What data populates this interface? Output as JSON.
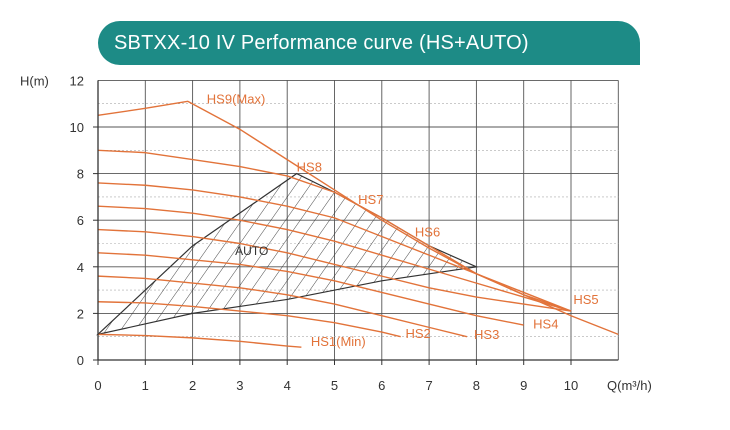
{
  "header": {
    "title": "SBTXX-10 IV Performance curve (HS+AUTO)"
  },
  "chart_data": {
    "type": "line",
    "title": "SBTXX-10 IV Performance curve (HS+AUTO)",
    "xlabel": "Q(m³/h)",
    "ylabel": "H(m)",
    "xlim": [
      0,
      11
    ],
    "ylim": [
      0,
      12
    ],
    "x_ticks": [
      "0",
      "1",
      "2",
      "3",
      "4",
      "5",
      "6",
      "7",
      "8",
      "9",
      "10"
    ],
    "y_ticks": [
      "0",
      "2",
      "4",
      "6",
      "8",
      "10",
      "12"
    ],
    "grid": true,
    "curve_color": "#e2733a",
    "hatch_color": "#333333",
    "series": [
      {
        "name": "HS9(Max)",
        "label": "HS9(Max)",
        "label_at": [
          2.3,
          11.0
        ],
        "points": [
          [
            0,
            10.5
          ],
          [
            1,
            10.8
          ],
          [
            1.9,
            11.1
          ],
          [
            3,
            9.9
          ],
          [
            4,
            8.6
          ],
          [
            5,
            7.3
          ],
          [
            6,
            6.0
          ],
          [
            7,
            4.8
          ],
          [
            8,
            3.7
          ],
          [
            9,
            2.8
          ],
          [
            10,
            1.9
          ],
          [
            11,
            1.1
          ]
        ]
      },
      {
        "name": "HS8",
        "label": "HS8",
        "label_at": [
          4.2,
          8.1
        ],
        "points": [
          [
            0,
            9.0
          ],
          [
            1,
            8.9
          ],
          [
            2,
            8.6
          ],
          [
            3,
            8.3
          ],
          [
            4,
            7.9
          ],
          [
            5,
            7.2
          ],
          [
            6,
            6.1
          ],
          [
            7,
            4.9
          ],
          [
            8,
            3.7
          ],
          [
            9,
            2.8
          ],
          [
            10,
            2.1
          ]
        ]
      },
      {
        "name": "HS7",
        "label": "HS7",
        "label_at": [
          5.5,
          6.7
        ],
        "points": [
          [
            0,
            7.6
          ],
          [
            1,
            7.5
          ],
          [
            2,
            7.3
          ],
          [
            3,
            7.0
          ],
          [
            4,
            6.6
          ],
          [
            5,
            6.1
          ],
          [
            6,
            5.3
          ],
          [
            7,
            4.5
          ],
          [
            8,
            3.7
          ],
          [
            9,
            2.9
          ],
          [
            10,
            2.1
          ]
        ]
      },
      {
        "name": "HS6",
        "label": "HS6",
        "label_at": [
          6.7,
          5.3
        ],
        "points": [
          [
            0,
            6.6
          ],
          [
            1,
            6.5
          ],
          [
            2,
            6.3
          ],
          [
            3,
            6.0
          ],
          [
            4,
            5.6
          ],
          [
            5,
            5.1
          ],
          [
            6,
            4.5
          ],
          [
            7,
            3.9
          ],
          [
            8,
            3.3
          ],
          [
            9,
            2.7
          ],
          [
            10,
            2.1
          ]
        ]
      },
      {
        "name": "HS5",
        "label": "HS5",
        "label_at": [
          10.05,
          2.4
        ],
        "points": [
          [
            0,
            5.6
          ],
          [
            1,
            5.5
          ],
          [
            2,
            5.3
          ],
          [
            3,
            5.0
          ],
          [
            4,
            4.6
          ],
          [
            5,
            4.1
          ],
          [
            6,
            3.6
          ],
          [
            7,
            3.1
          ],
          [
            8,
            2.7
          ],
          [
            9,
            2.4
          ],
          [
            10,
            2.1
          ]
        ]
      },
      {
        "name": "HS4",
        "label": "HS4",
        "label_at": [
          9.2,
          1.35
        ],
        "points": [
          [
            0,
            4.6
          ],
          [
            1,
            4.5
          ],
          [
            2,
            4.3
          ],
          [
            3,
            4.1
          ],
          [
            4,
            3.8
          ],
          [
            5,
            3.4
          ],
          [
            6,
            2.9
          ],
          [
            7,
            2.4
          ],
          [
            8,
            1.9
          ],
          [
            9,
            1.5
          ]
        ]
      },
      {
        "name": "HS3",
        "label": "HS3",
        "label_at": [
          7.95,
          0.9
        ],
        "points": [
          [
            0,
            3.6
          ],
          [
            1,
            3.5
          ],
          [
            2,
            3.3
          ],
          [
            3,
            3.1
          ],
          [
            4,
            2.8
          ],
          [
            5,
            2.4
          ],
          [
            6,
            1.9
          ],
          [
            7,
            1.4
          ],
          [
            7.8,
            1.0
          ]
        ]
      },
      {
        "name": "HS2",
        "label": "HS2",
        "label_at": [
          6.5,
          0.95
        ],
        "points": [
          [
            0,
            2.5
          ],
          [
            1,
            2.45
          ],
          [
            2,
            2.3
          ],
          [
            3,
            2.1
          ],
          [
            4,
            1.9
          ],
          [
            5,
            1.6
          ],
          [
            6,
            1.2
          ],
          [
            6.4,
            1.0
          ]
        ]
      },
      {
        "name": "HS1(Min)",
        "label": "HS1(Min)",
        "label_at": [
          4.5,
          0.6
        ],
        "points": [
          [
            0,
            1.1
          ],
          [
            1,
            1.05
          ],
          [
            2,
            0.95
          ],
          [
            3,
            0.8
          ],
          [
            4,
            0.6
          ],
          [
            4.3,
            0.55
          ]
        ]
      }
    ],
    "auto_region": {
      "label": "AUTO",
      "label_at": [
        2.9,
        4.5
      ],
      "polygon": [
        [
          0,
          1.1
        ],
        [
          2,
          4.9
        ],
        [
          4.2,
          8.0
        ],
        [
          5,
          7.2
        ],
        [
          6,
          6.1
        ],
        [
          7,
          4.9
        ],
        [
          8,
          4.0
        ],
        [
          6,
          3.4
        ],
        [
          4,
          2.6
        ],
        [
          2,
          2.0
        ],
        [
          0,
          1.1
        ]
      ]
    }
  }
}
